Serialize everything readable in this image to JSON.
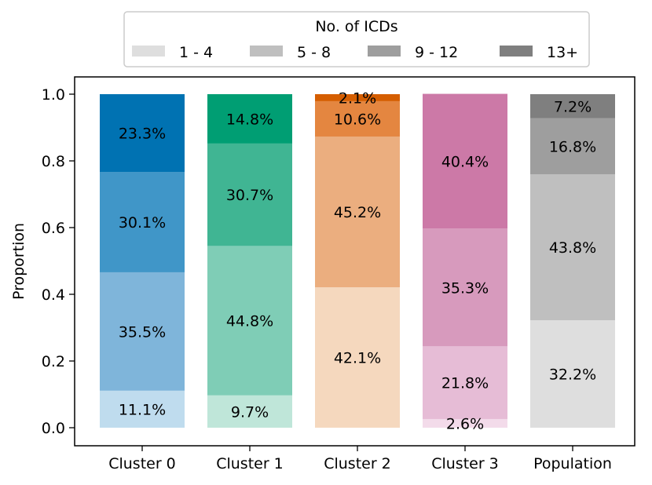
{
  "chart_data": {
    "type": "bar",
    "stacked": true,
    "categories": [
      "Cluster 0",
      "Cluster 1",
      "Cluster 2",
      "Cluster 3",
      "Population"
    ],
    "ylabel": "Proportion",
    "xlabel": "",
    "ylim": [
      0.0,
      1.0
    ],
    "yticks": [
      "0.0",
      "0.2",
      "0.4",
      "0.6",
      "0.8",
      "1.0"
    ],
    "grid": false,
    "legend": {
      "title": "No. of ICDs",
      "placement": "top-center",
      "entries": [
        {
          "label": "1 - 4",
          "color": "#dedede"
        },
        {
          "label": "5 - 8",
          "color": "#bfbfbf"
        },
        {
          "label": "9 - 12",
          "color": "#9e9e9e"
        },
        {
          "label": "13+",
          "color": "#7f7f7f"
        }
      ]
    },
    "series": [
      {
        "name": "1 - 4",
        "values": [
          0.111,
          0.097,
          0.421,
          0.026,
          0.322
        ],
        "labels": [
          "11.1%",
          "9.7%",
          "42.1%",
          "2.6%",
          "32.2%"
        ],
        "colors": [
          "#bfdcee",
          "#bfe6d9",
          "#f5d8be",
          "#f3dbea",
          "#dedede"
        ]
      },
      {
        "name": "5 - 8",
        "values": [
          0.355,
          0.448,
          0.452,
          0.218,
          0.438
        ],
        "labels": [
          "35.5%",
          "44.8%",
          "45.2%",
          "21.8%",
          "43.8%"
        ],
        "colors": [
          "#7fb5da",
          "#7fcdb6",
          "#ebae7f",
          "#e6bcd6",
          "#bfbfbf"
        ]
      },
      {
        "name": "9 - 12",
        "values": [
          0.301,
          0.307,
          0.106,
          0.353,
          0.168
        ],
        "labels": [
          "30.1%",
          "30.7%",
          "10.6%",
          "35.3%",
          "16.8%"
        ],
        "colors": [
          "#4096c8",
          "#40b593",
          "#e48640",
          "#d79abd",
          "#9e9e9e"
        ]
      },
      {
        "name": "13+",
        "values": [
          0.233,
          0.148,
          0.021,
          0.404,
          0.072
        ],
        "labels": [
          "23.3%",
          "14.8%",
          "2.1%",
          "40.4%",
          "7.2%"
        ],
        "colors": [
          "#0072b2",
          "#009e73",
          "#d55e00",
          "#cc79a7",
          "#7f7f7f"
        ]
      }
    ]
  }
}
